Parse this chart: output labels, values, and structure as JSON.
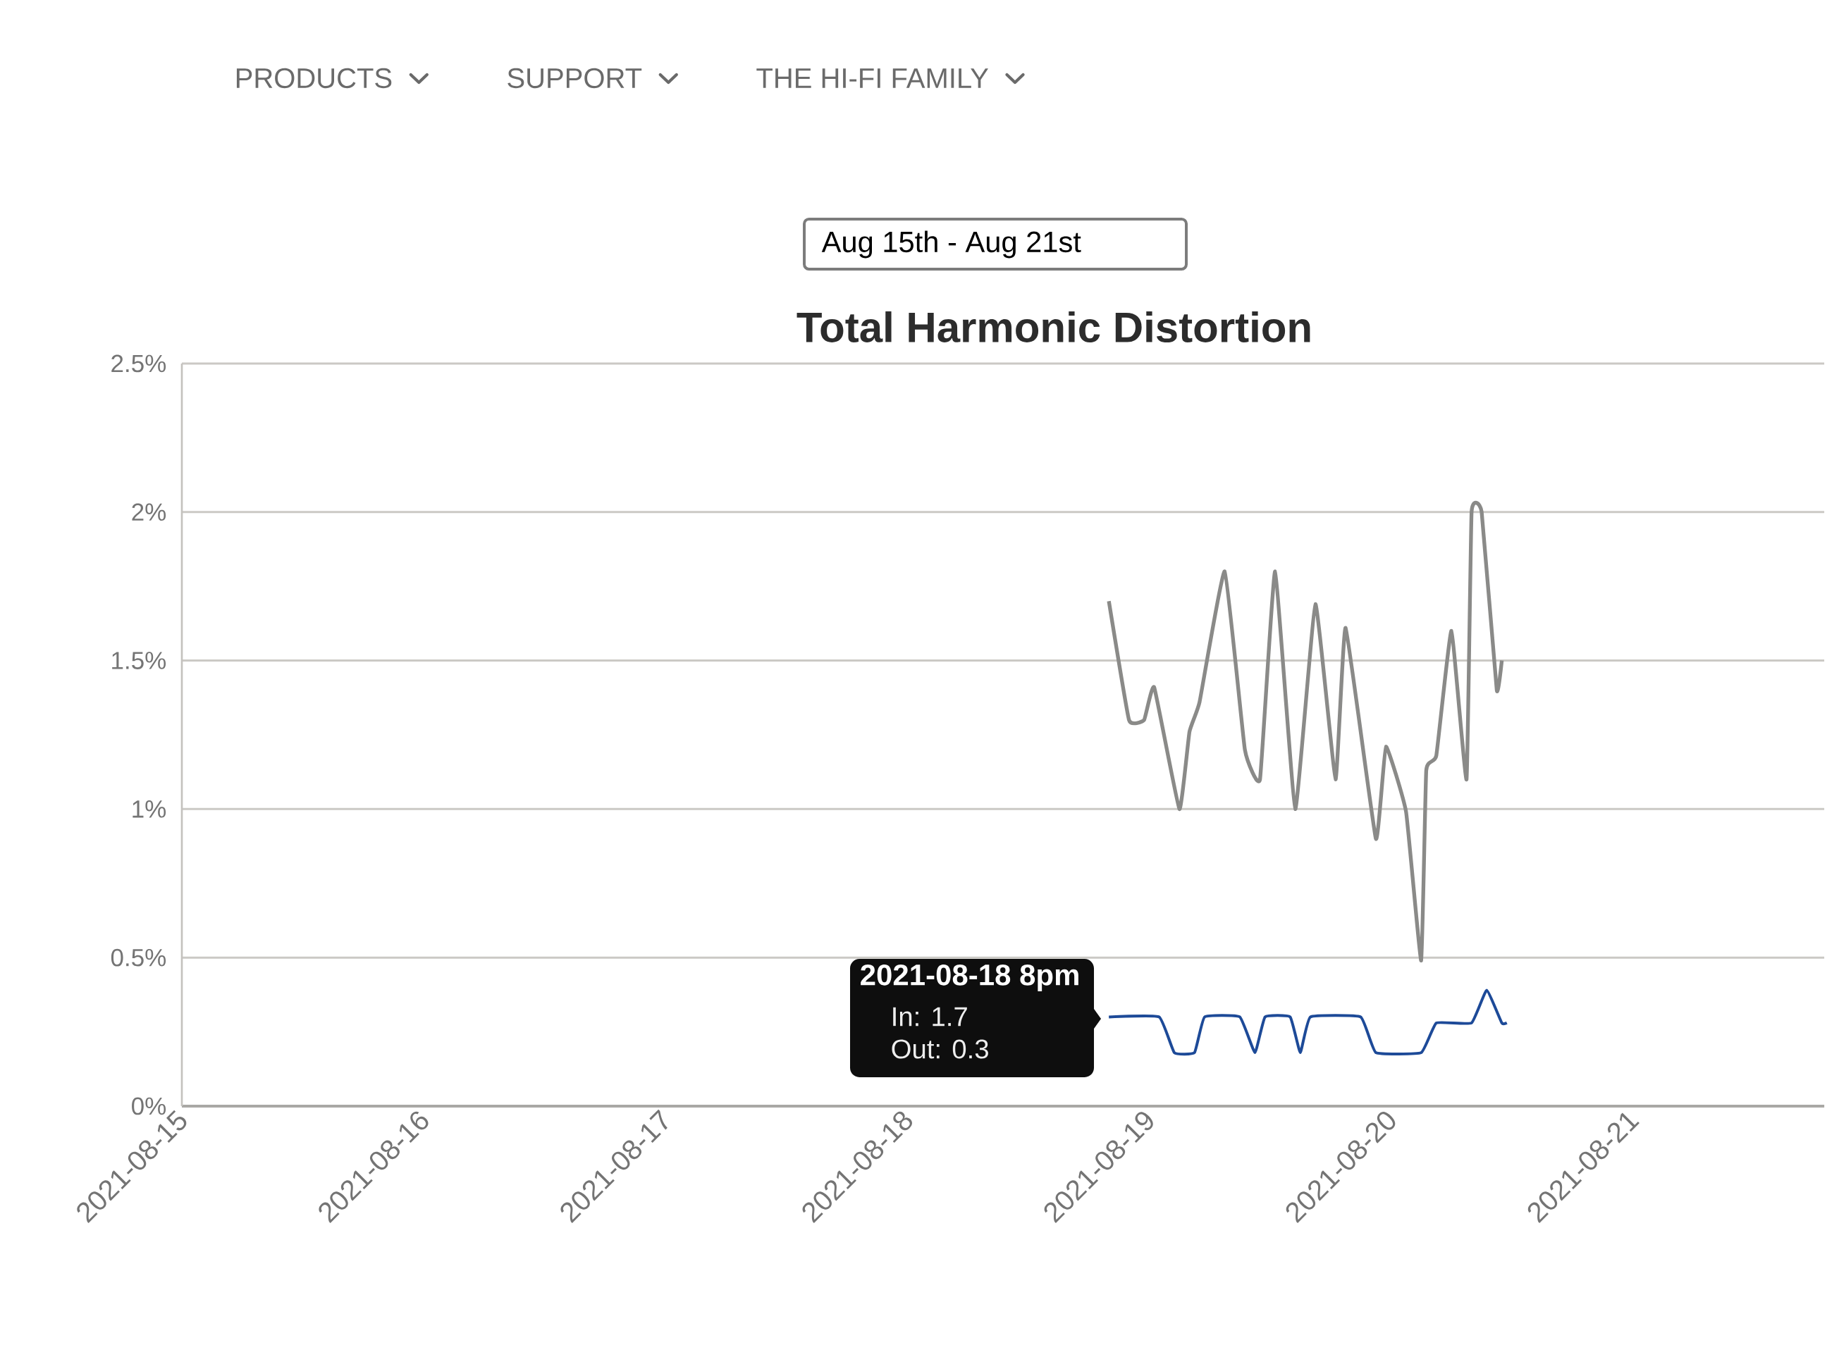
{
  "chart_data": {
    "type": "line",
    "title": "Total Harmonic Distortion",
    "series": [
      {
        "color": "#8a8a88",
        "x": [
          "2021-08-18T20:00",
          "2021-08-18T22:00",
          "2021-08-18T23:30",
          "2021-08-19T00:30",
          "2021-08-19T03:00",
          "2021-08-19T04:00",
          "2021-08-19T05:00",
          "2021-08-19T07:30",
          "2021-08-19T09:30",
          "2021-08-19T11:00",
          "2021-08-19T12:30",
          "2021-08-19T14:30",
          "2021-08-19T16:30",
          "2021-08-19T18:30",
          "2021-08-19T19:30",
          "2021-08-19T22:30",
          "2021-08-19T23:30",
          "2021-08-20T01:30",
          "2021-08-20T03:00",
          "2021-08-20T03:30",
          "2021-08-20T04:30",
          "2021-08-20T06:00",
          "2021-08-20T07:30",
          "2021-08-20T08:00",
          "2021-08-20T09:00",
          "2021-08-20T10:30",
          "2021-08-20T11:00"
        ],
        "values": [
          1.7,
          1.3,
          1.3,
          1.41,
          1.0,
          1.26,
          1.36,
          1.8,
          1.2,
          1.1,
          1.8,
          1.0,
          1.69,
          1.1,
          1.61,
          0.9,
          1.21,
          0.99,
          0.49,
          1.13,
          1.18,
          1.6,
          1.1,
          2.0,
          2.0,
          1.4,
          1.5
        ]
      },
      {
        "color": "#1d4a98",
        "x": [
          "2021-08-18T20:00",
          "2021-08-19T01:00",
          "2021-08-19T02:30",
          "2021-08-19T04:30",
          "2021-08-19T05:30",
          "2021-08-19T09:00",
          "2021-08-19T10:30",
          "2021-08-19T11:30",
          "2021-08-19T14:00",
          "2021-08-19T15:00",
          "2021-08-19T16:00",
          "2021-08-19T21:00",
          "2021-08-19T22:30",
          "2021-08-20T03:00",
          "2021-08-20T04:30",
          "2021-08-20T08:00",
          "2021-08-20T09:30",
          "2021-08-20T11:00",
          "2021-08-20T11:30"
        ],
        "values": [
          0.3,
          0.3,
          0.18,
          0.18,
          0.3,
          0.3,
          0.18,
          0.3,
          0.3,
          0.18,
          0.3,
          0.3,
          0.18,
          0.18,
          0.28,
          0.28,
          0.39,
          0.28,
          0.28
        ]
      }
    ],
    "xlim": [
      "2021-08-15",
      "2021-08-21T19:00"
    ],
    "xticks": [
      "2021-08-15",
      "2021-08-16",
      "2021-08-17",
      "2021-08-18",
      "2021-08-19",
      "2021-08-20",
      "2021-08-21"
    ],
    "ylim": [
      0,
      2.5
    ],
    "yticks": [
      {
        "value": 0,
        "label": "0%"
      },
      {
        "value": 0.5,
        "label": "0.5%"
      },
      {
        "value": 1,
        "label": "1%"
      },
      {
        "value": 1.5,
        "label": "1.5%"
      },
      {
        "value": 2,
        "label": "2%"
      },
      {
        "value": 2.5,
        "label": "2.5%"
      }
    ],
    "grid": "y",
    "annotations": [
      "PRODUCTS",
      "SUPPORT",
      "THE HI-FI FAMILY",
      "Aug 15th - Aug 21st",
      "2021-08-18 8pm",
      "In: 1.7",
      "Out: 0.3"
    ]
  }
}
